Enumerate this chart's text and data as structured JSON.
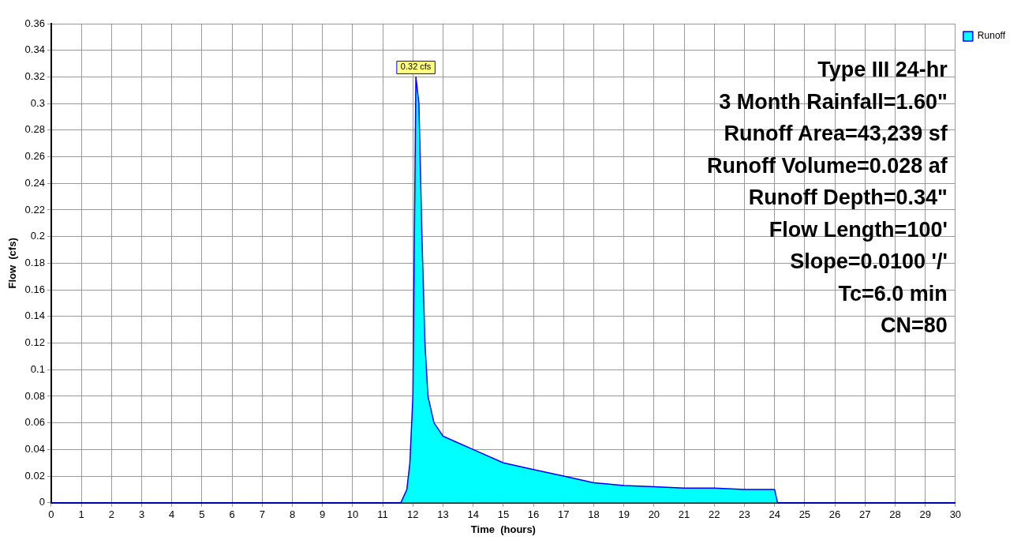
{
  "chart_data": {
    "type": "area",
    "xlabel": "Time  (hours)",
    "ylabel": "Flow  (cfs)",
    "x": [
      0,
      11.6,
      11.8,
      11.9,
      12.0,
      12.05,
      12.1,
      12.2,
      12.3,
      12.4,
      12.5,
      12.7,
      13,
      13.5,
      14,
      15,
      16,
      17,
      18,
      19,
      20,
      21,
      22,
      23,
      24.0,
      24.1,
      30
    ],
    "series": [
      {
        "name": "Runoff",
        "color": "#00ffff",
        "values": [
          0,
          0,
          0.01,
          0.03,
          0.08,
          0.2,
          0.32,
          0.3,
          0.2,
          0.12,
          0.08,
          0.06,
          0.05,
          0.045,
          0.04,
          0.03,
          0.025,
          0.02,
          0.015,
          0.013,
          0.012,
          0.011,
          0.011,
          0.01,
          0.01,
          0,
          0
        ]
      }
    ],
    "xlim": [
      0,
      30
    ],
    "xticks": [
      0,
      1,
      2,
      3,
      4,
      5,
      6,
      7,
      8,
      9,
      10,
      11,
      12,
      13,
      14,
      15,
      16,
      17,
      18,
      19,
      20,
      21,
      22,
      23,
      24,
      25,
      26,
      27,
      28,
      29,
      30
    ],
    "ylim": [
      0,
      0.36
    ],
    "yticks": [
      0,
      0.02,
      0.04,
      0.06,
      0.08,
      0.1,
      0.12,
      0.14,
      0.16,
      0.18,
      0.2,
      0.22,
      0.24,
      0.26,
      0.28,
      0.3,
      0.32,
      0.34,
      0.36
    ],
    "grid": true,
    "legend": "top right",
    "annotations": [
      {
        "text": "0.32 cfs",
        "x": 12.1,
        "y": 0.32
      },
      "Type III 24-hr",
      "3 Month Rainfall=1.60\"",
      "Runoff Area=43,239 sf",
      "Runoff Volume=0.028 af",
      "Runoff Depth=0.34\"",
      "Flow Length=100'",
      "Slope=0.0100 '/'",
      "Tc=6.0 min",
      "CN=80"
    ]
  }
}
